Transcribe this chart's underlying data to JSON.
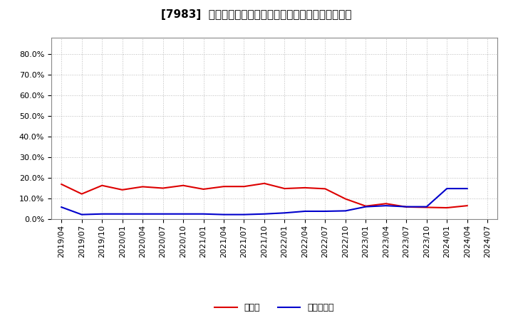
{
  "title": "[7983]  現頃金、有利子負債の総資産に対する比率の推移",
  "background_color": "#ffffff",
  "plot_bg_color": "#ffffff",
  "grid_color": "#aaaaaa",
  "ylim": [
    0.0,
    0.88
  ],
  "yticks": [
    0.0,
    0.1,
    0.2,
    0.3,
    0.4,
    0.5,
    0.6,
    0.7,
    0.8
  ],
  "x_labels": [
    "2019/04",
    "2019/07",
    "2019/10",
    "2020/01",
    "2020/04",
    "2020/07",
    "2020/10",
    "2021/01",
    "2021/04",
    "2021/07",
    "2021/10",
    "2022/01",
    "2022/04",
    "2022/07",
    "2022/10",
    "2023/01",
    "2023/04",
    "2023/07",
    "2023/10",
    "2024/01",
    "2024/04",
    "2024/07"
  ],
  "cash_values": [
    0.169,
    0.122,
    0.163,
    0.142,
    0.157,
    0.15,
    0.163,
    0.145,
    0.158,
    0.158,
    0.173,
    0.148,
    0.152,
    0.147,
    0.098,
    0.063,
    0.075,
    0.059,
    0.057,
    0.055,
    0.065,
    null
  ],
  "debt_values": [
    0.058,
    0.022,
    0.025,
    0.025,
    0.025,
    0.025,
    0.025,
    0.025,
    0.022,
    0.022,
    0.025,
    0.03,
    0.038,
    0.038,
    0.04,
    0.06,
    0.065,
    0.06,
    0.06,
    0.148,
    0.148,
    null
  ],
  "cash_color": "#dd0000",
  "debt_color": "#0000cc",
  "cash_label": "現頃金",
  "debt_label": "有利子負債",
  "title_fontsize": 11,
  "tick_fontsize": 8,
  "legend_fontsize": 9
}
